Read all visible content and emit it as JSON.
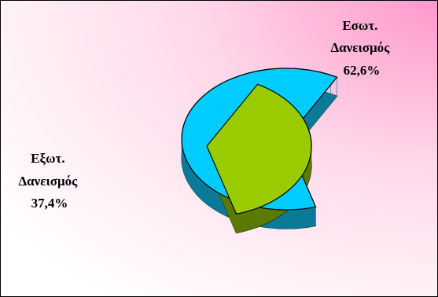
{
  "chart_data": {
    "type": "pie",
    "style": "3d-exploded",
    "title": "",
    "slices": [
      {
        "label_line1": "Εσωτ.",
        "label_line2": "Δανεισμός",
        "value_text": "62,6%",
        "value": 62.6,
        "color": "#00ccff",
        "side_color": "#0a7a99"
      },
      {
        "label_line1": "Εξωτ.",
        "label_line2": "Δανεισμός",
        "value_text": "37,4%",
        "value": 37.4,
        "color": "#99cc00",
        "side_color": "#5a7a00"
      }
    ],
    "background": {
      "gradient_from": "#ffffff",
      "gradient_to": "#ff99cc"
    },
    "legend": "none"
  }
}
